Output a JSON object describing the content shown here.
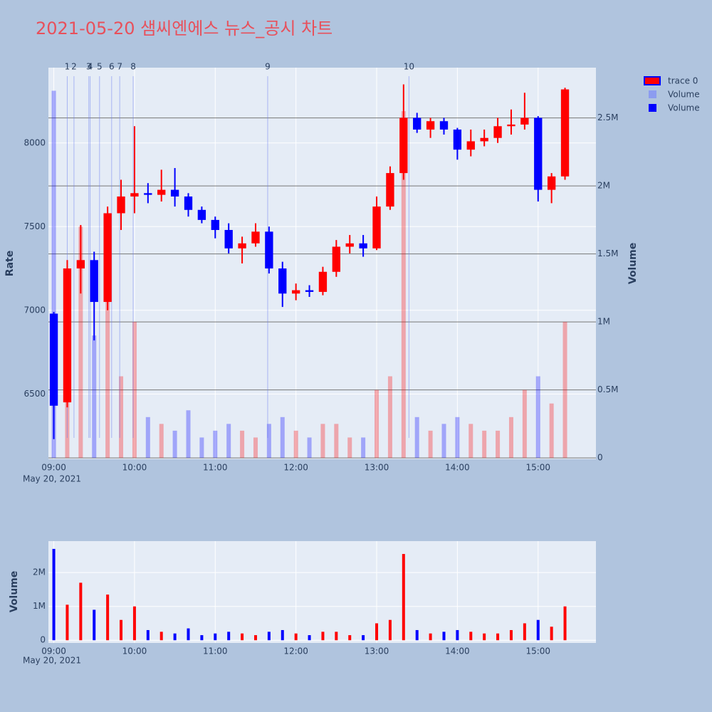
{
  "chart_data": [
    {
      "type": "candlestick",
      "title": "2021-05-20 샘씨엔에스 뉴스_공시 차트",
      "ylabel": "Rate",
      "y2label": "Volume",
      "date_label": "May 20, 2021",
      "x": [
        "09:00",
        "09:10",
        "09:20",
        "09:30",
        "09:40",
        "09:50",
        "10:00",
        "10:10",
        "10:20",
        "10:30",
        "10:40",
        "10:50",
        "11:00",
        "11:10",
        "11:20",
        "11:30",
        "11:40",
        "11:50",
        "12:00",
        "12:10",
        "12:20",
        "12:30",
        "12:40",
        "12:50",
        "13:00",
        "13:10",
        "13:20",
        "13:30",
        "13:40",
        "13:50",
        "14:00",
        "14:10",
        "14:20",
        "14:30",
        "14:40",
        "14:50",
        "15:00",
        "15:10",
        "15:20"
      ],
      "xlim": [
        "08:56",
        "15:43"
      ],
      "xticks": [
        "09:00",
        "10:00",
        "11:00",
        "12:00",
        "13:00",
        "14:00",
        "15:00"
      ],
      "ylim": [
        6110,
        8450
      ],
      "yticks": [
        6500,
        7000,
        7500,
        8000
      ],
      "y2lim": [
        -10000,
        2870000
      ],
      "y2ticks": [
        0,
        {
          "value": 500000,
          "label": "0.5M"
        },
        {
          "value": 1000000,
          "label": "1M"
        },
        {
          "value": 1500000,
          "label": "1.5M"
        },
        {
          "value": 2000000,
          "label": "2M"
        },
        {
          "value": 2500000,
          "label": "2.5M"
        }
      ],
      "grid": true,
      "series": [
        {
          "name": "trace 0",
          "up_color": "#ff0000",
          "down_color": "#0000ff",
          "open": [
            6980,
            6450,
            7250,
            7300,
            7050,
            7580,
            7680,
            7700,
            7690,
            7720,
            7680,
            7600,
            7540,
            7480,
            7370,
            7400,
            7470,
            7250,
            7100,
            7120,
            7110,
            7230,
            7380,
            7400,
            7370,
            7620,
            7820,
            8150,
            8080,
            8130,
            8080,
            7960,
            8010,
            8030,
            8100,
            8110,
            8150,
            7720,
            7800
          ],
          "high": [
            6990,
            7300,
            7510,
            7350,
            7620,
            7780,
            8100,
            7760,
            7840,
            7850,
            7700,
            7620,
            7560,
            7520,
            7440,
            7520,
            7500,
            7290,
            7160,
            7150,
            7260,
            7420,
            7450,
            7450,
            7680,
            7860,
            8350,
            8180,
            8150,
            8150,
            8090,
            8080,
            8080,
            8150,
            8200,
            8300,
            8160,
            7820,
            8330
          ],
          "low": [
            6230,
            6420,
            7100,
            6820,
            7000,
            7480,
            7580,
            7640,
            7650,
            7620,
            7560,
            7520,
            7430,
            7340,
            7280,
            7380,
            7220,
            7020,
            7060,
            7080,
            7090,
            7200,
            7340,
            7320,
            7360,
            7600,
            7780,
            8060,
            8030,
            8050,
            7900,
            7920,
            7980,
            8000,
            8050,
            8080,
            7650,
            7640,
            7780
          ],
          "close": [
            6430,
            7250,
            7300,
            7050,
            7580,
            7680,
            7700,
            7690,
            7720,
            7680,
            7600,
            7540,
            7480,
            7370,
            7400,
            7470,
            7250,
            7100,
            7120,
            7110,
            7230,
            7380,
            7400,
            7370,
            7620,
            7820,
            8150,
            8080,
            8130,
            8080,
            7960,
            8010,
            8030,
            8100,
            8110,
            8150,
            7720,
            7800,
            8320
          ]
        },
        {
          "name": "Volume",
          "color": "#8c9cf0",
          "axis": "y2",
          "values": [
            2700000,
            1050000,
            1700000,
            900000,
            1350000,
            600000,
            1000000,
            300000,
            250000,
            200000,
            350000,
            150000,
            200000,
            250000,
            200000,
            150000,
            250000,
            300000,
            200000,
            150000,
            250000,
            250000,
            150000,
            150000,
            500000,
            600000,
            2550000,
            300000,
            200000,
            250000,
            300000,
            250000,
            200000,
            200000,
            300000,
            500000,
            600000,
            400000,
            1000000
          ]
        }
      ],
      "annotations": [
        {
          "text": "1",
          "x": "09:10"
        },
        {
          "text": "2",
          "x": "09:15"
        },
        {
          "text": "3",
          "x": "09:26"
        },
        {
          "text": "4",
          "x": "09:27"
        },
        {
          "text": "5",
          "x": "09:34"
        },
        {
          "text": "6",
          "x": "09:43"
        },
        {
          "text": "7",
          "x": "09:49"
        },
        {
          "text": "8",
          "x": "09:59"
        },
        {
          "text": "9",
          "x": "11:39"
        },
        {
          "text": "10",
          "x": "13:24"
        }
      ]
    },
    {
      "type": "bar",
      "ylabel": "Volume",
      "date_label": "May 20, 2021",
      "x": [
        "09:00",
        "09:10",
        "09:20",
        "09:30",
        "09:40",
        "09:50",
        "10:00",
        "10:10",
        "10:20",
        "10:30",
        "10:40",
        "10:50",
        "11:00",
        "11:10",
        "11:20",
        "11:30",
        "11:40",
        "11:50",
        "12:00",
        "12:10",
        "12:20",
        "12:30",
        "12:40",
        "12:50",
        "13:00",
        "13:10",
        "13:20",
        "13:30",
        "13:40",
        "13:50",
        "14:00",
        "14:10",
        "14:20",
        "14:30",
        "14:40",
        "14:50",
        "15:00",
        "15:10",
        "15:20"
      ],
      "xlim": [
        "08:56",
        "15:43"
      ],
      "xticks": [
        "09:00",
        "10:00",
        "11:00",
        "12:00",
        "13:00",
        "14:00",
        "15:00"
      ],
      "ylim": [
        -80000,
        2930000
      ],
      "yticks": [
        0,
        {
          "value": 1000000,
          "label": "1M"
        },
        {
          "value": 2000000,
          "label": "2M"
        }
      ],
      "grid": true,
      "series": [
        {
          "name": "Volume",
          "color": "#0000ff",
          "values": [
            2700000,
            1050000,
            1700000,
            900000,
            1350000,
            600000,
            1000000,
            300000,
            250000,
            200000,
            350000,
            150000,
            200000,
            250000,
            200000,
            150000,
            250000,
            300000,
            200000,
            150000,
            250000,
            250000,
            150000,
            150000,
            500000,
            600000,
            2550000,
            300000,
            200000,
            250000,
            300000,
            250000,
            200000,
            200000,
            300000,
            500000,
            600000,
            400000,
            1000000
          ],
          "colors": [
            "#0000ff",
            "#ff0000",
            "#ff0000",
            "#0000ff",
            "#ff0000",
            "#ff0000",
            "#ff0000",
            "#0000ff",
            "#ff0000",
            "#0000ff",
            "#0000ff",
            "#0000ff",
            "#0000ff",
            "#0000ff",
            "#ff0000",
            "#ff0000",
            "#0000ff",
            "#0000ff",
            "#ff0000",
            "#0000ff",
            "#ff0000",
            "#ff0000",
            "#ff0000",
            "#0000ff",
            "#ff0000",
            "#ff0000",
            "#ff0000",
            "#0000ff",
            "#ff0000",
            "#0000ff",
            "#0000ff",
            "#ff0000",
            "#ff0000",
            "#ff0000",
            "#ff0000",
            "#ff0000",
            "#0000ff",
            "#ff0000",
            "#ff0000"
          ]
        }
      ]
    }
  ]
}
